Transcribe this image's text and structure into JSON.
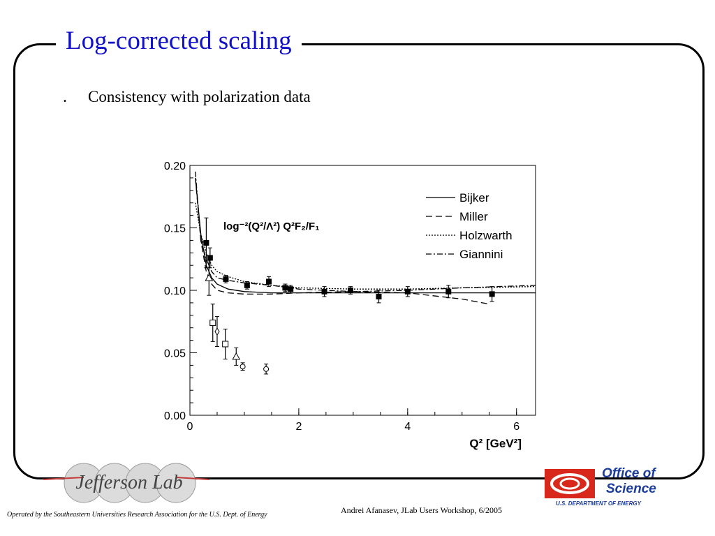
{
  "slide": {
    "title": "Log-corrected scaling",
    "bullet": "Consistency with polarization data"
  },
  "footer": {
    "operated_by": "Operated by the Southeastern Universities Research Association for the U.S. Dept. of Energy",
    "author": "Andrei Afanasev, JLab Users Workshop, 6/2005"
  },
  "logos": {
    "jlab": "Jefferson Lab",
    "office_line1": "Office of",
    "office_line2": "Science",
    "office_line3": "U.S. DEPARTMENT OF ENERGY"
  },
  "colors": {
    "title": "#1010c8",
    "office_red": "#d8281c",
    "office_blue": "#1c3c9c"
  },
  "chart_data": {
    "type": "scatter",
    "xlabel": "Q² [GeV²]",
    "ylabel": "",
    "annotation": "log⁻²(Q²/Λ²) Q²F₂/F₁",
    "xlim": [
      0,
      6.35
    ],
    "ylim": [
      0.0,
      0.2
    ],
    "x_ticks": [
      0,
      2,
      4,
      6
    ],
    "y_ticks": [
      0.0,
      0.05,
      0.1,
      0.15,
      0.2
    ],
    "x_tick_labels": [
      "0",
      "2",
      "4",
      "6"
    ],
    "y_tick_labels": [
      "0.00",
      "0.05",
      "0.10",
      "0.15",
      "0.20"
    ],
    "grid": false,
    "legend_position": "top-right",
    "curves": [
      {
        "name": "Bijker",
        "style": "solid",
        "x": [
          0.1,
          0.2,
          0.3,
          0.4,
          0.5,
          0.7,
          1.0,
          1.5,
          2.0,
          3.0,
          4.0,
          5.0,
          6.35
        ],
        "y": [
          0.19,
          0.145,
          0.12,
          0.11,
          0.105,
          0.101,
          0.099,
          0.098,
          0.098,
          0.098,
          0.098,
          0.098,
          0.098
        ]
      },
      {
        "name": "Miller",
        "style": "dashed",
        "x": [
          0.1,
          0.2,
          0.3,
          0.4,
          0.5,
          0.7,
          1.0,
          1.5,
          2.0,
          3.0,
          4.0,
          5.0,
          5.5
        ],
        "y": [
          0.19,
          0.14,
          0.115,
          0.105,
          0.1,
          0.098,
          0.097,
          0.097,
          0.098,
          0.099,
          0.098,
          0.093,
          0.089
        ]
      },
      {
        "name": "Holzwarth",
        "style": "dotted",
        "x": [
          0.1,
          0.2,
          0.3,
          0.4,
          0.5,
          0.7,
          1.0,
          1.5,
          2.0,
          3.0,
          4.0,
          5.0,
          6.35
        ],
        "y": [
          0.17,
          0.145,
          0.13,
          0.12,
          0.115,
          0.111,
          0.107,
          0.104,
          0.102,
          0.101,
          0.101,
          0.102,
          0.103
        ]
      },
      {
        "name": "Giannini",
        "style": "dashdot",
        "x": [
          0.1,
          0.2,
          0.3,
          0.4,
          0.5,
          0.7,
          1.0,
          1.5,
          2.0,
          3.0,
          4.0,
          5.0,
          6.35
        ],
        "y": [
          0.195,
          0.14,
          0.125,
          0.115,
          0.11,
          0.108,
          0.106,
          0.104,
          0.101,
          0.099,
          0.1,
          0.102,
          0.104
        ]
      }
    ],
    "points": [
      {
        "marker": "filled-square",
        "x": [
          0.3,
          0.37,
          0.66,
          1.05,
          1.45,
          1.75,
          1.85,
          2.47,
          2.95,
          3.47,
          4.0,
          4.75,
          5.55
        ],
        "y": [
          0.138,
          0.126,
          0.109,
          0.104,
          0.107,
          0.102,
          0.101,
          0.099,
          0.1,
          0.095,
          0.099,
          0.099,
          0.097
        ],
        "err": [
          0.02,
          0.008,
          0.003,
          0.003,
          0.004,
          0.003,
          0.003,
          0.004,
          0.003,
          0.005,
          0.004,
          0.005,
          0.006
        ]
      },
      {
        "marker": "open-triangle",
        "x": [
          0.35,
          0.85
        ],
        "y": [
          0.11,
          0.047
        ],
        "err": [
          0.014,
          0.007
        ]
      },
      {
        "marker": "open-square",
        "x": [
          0.42,
          0.65
        ],
        "y": [
          0.074,
          0.057
        ],
        "err": [
          0.015,
          0.012
        ]
      },
      {
        "marker": "open-diamond",
        "x": [
          0.5
        ],
        "y": [
          0.067
        ],
        "err": [
          0.012
        ]
      },
      {
        "marker": "open-circle",
        "x": [
          0.97,
          1.4
        ],
        "y": [
          0.039,
          0.037
        ],
        "err": [
          0.003,
          0.004
        ]
      }
    ]
  }
}
